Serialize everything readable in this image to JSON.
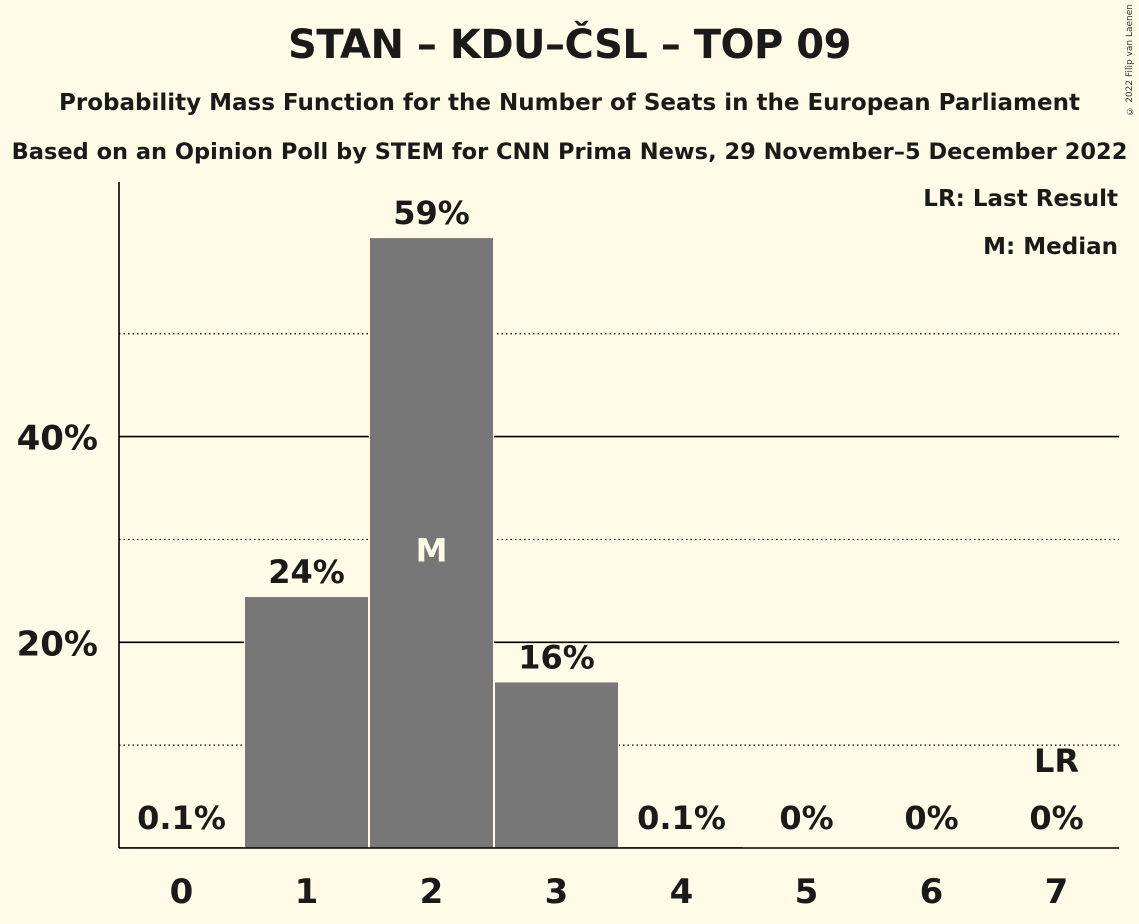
{
  "title": "STAN – KDU–ČSL – TOP 09",
  "subtitle_1": "Probability Mass Function for the Number of Seats in the European Parliament",
  "subtitle_2": "Based on an Opinion Poll by STEM for CNN Prima News, 29 November–5 December 2022",
  "copyright": "© 2022 Filip van Laenen",
  "legend": {
    "last_result": "LR: Last Result",
    "median": "M: Median"
  },
  "colors": {
    "background": "#FFFBE6",
    "bar": "#777777"
  },
  "chart_data": {
    "type": "bar",
    "categories": [
      "0",
      "1",
      "2",
      "3",
      "4",
      "5",
      "6",
      "7"
    ],
    "values": [
      0.1,
      24.4,
      59.3,
      16.1,
      0.1,
      0,
      0,
      0
    ],
    "value_labels": [
      "0.1%",
      "24%",
      "59%",
      "16%",
      "0.1%",
      "0%",
      "0%",
      "0%"
    ],
    "ylim": [
      0,
      65
    ],
    "yticks": [
      20,
      40
    ],
    "ytick_labels": [
      "20%",
      "40%"
    ],
    "minor_gridlines": [
      10,
      30,
      50
    ],
    "median_index": 2,
    "median_label": "M",
    "last_result_index": 7,
    "last_result_label": "LR"
  }
}
